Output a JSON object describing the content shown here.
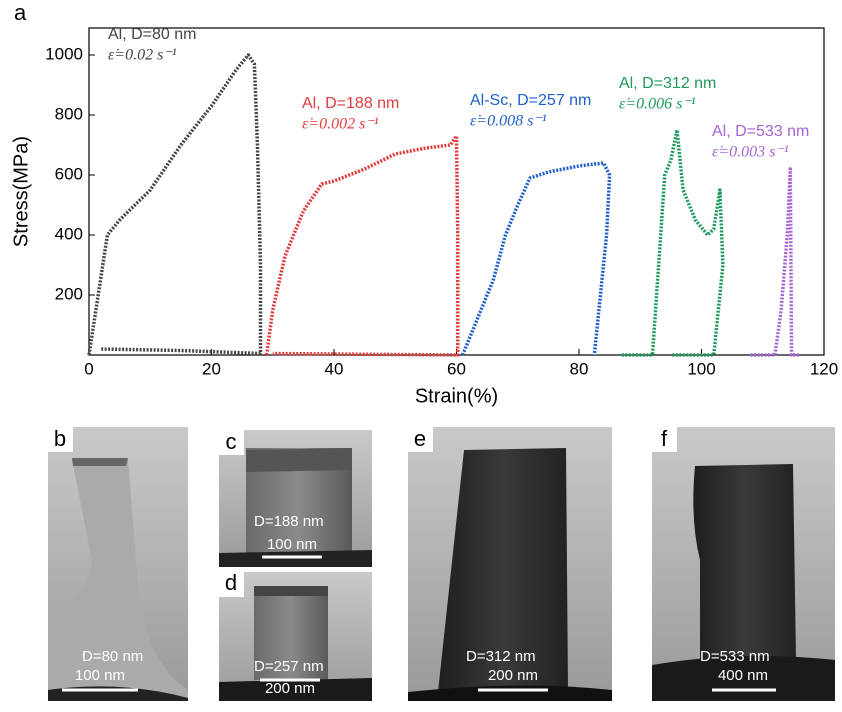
{
  "panel_label": "a",
  "chart_data": {
    "type": "line",
    "x_label": "Strain(%)",
    "y_label": "Stress(MPa)",
    "xlim": [
      0,
      120
    ],
    "xticks": [
      0,
      20,
      40,
      60,
      80,
      100,
      120
    ],
    "ylim": [
      0,
      1090
    ],
    "yticks": [
      200,
      400,
      600,
      800,
      1000
    ],
    "series": [
      {
        "name": "Al, D=80 nm",
        "strain_rate": "ε̇=0.02 s⁻¹",
        "color": "#454545",
        "x": [
          0,
          3,
          5,
          10,
          15,
          20,
          24,
          26,
          27,
          27.5,
          28,
          28,
          15,
          2
        ],
        "values": [
          0,
          400,
          450,
          550,
          700,
          830,
          950,
          1000,
          970,
          700,
          300,
          5,
          15,
          20
        ]
      },
      {
        "name": "Al, D=188 nm",
        "strain_rate": "ε̇=0.002 s⁻¹",
        "color": "#e23b3b",
        "x": [
          29,
          30,
          32,
          35,
          38,
          40,
          45,
          50,
          55,
          59,
          60,
          60.2,
          60.2,
          30
        ],
        "values": [
          0,
          150,
          330,
          480,
          570,
          580,
          620,
          670,
          690,
          700,
          730,
          400,
          0,
          5
        ]
      },
      {
        "name": "Al-Sc, D=257 nm",
        "strain_rate": "ε̇=0.008 s⁻¹",
        "color": "#1f5fcc",
        "x": [
          61,
          63,
          66,
          68,
          70,
          72,
          75,
          80,
          84,
          85,
          84.5,
          83,
          82.5
        ],
        "values": [
          0,
          100,
          250,
          400,
          500,
          590,
          610,
          630,
          640,
          600,
          400,
          100,
          0
        ]
      },
      {
        "name": "Al, D=312 nm",
        "strain_rate": "ε̇=0.006 s⁻¹",
        "color": "#1d9a5c",
        "x": [
          87,
          92,
          93,
          94,
          95,
          96,
          97,
          99,
          101,
          102,
          103,
          103.5,
          102,
          95
        ],
        "values": [
          0,
          0,
          300,
          600,
          650,
          750,
          550,
          450,
          400,
          420,
          550,
          300,
          0,
          0
        ]
      },
      {
        "name": "Al, D=533 nm",
        "strain_rate": "ε̇=0.003 s⁻¹",
        "color": "#a565d6",
        "x": [
          108,
          112,
          113,
          114,
          114.5,
          114.7,
          116
        ],
        "values": [
          0,
          0,
          150,
          400,
          620,
          0,
          0
        ]
      }
    ]
  },
  "images": [
    {
      "label": "b",
      "diameter": "D=80 nm",
      "scale": "100 nm"
    },
    {
      "label": "c",
      "diameter": "D=188 nm",
      "scale": "100 nm"
    },
    {
      "label": "d",
      "diameter": "D=257 nm",
      "scale": "200 nm"
    },
    {
      "label": "e",
      "diameter": "D=312 nm",
      "scale": "200 nm"
    },
    {
      "label": "f",
      "diameter": "D=533 nm",
      "scale": "400 nm"
    }
  ]
}
